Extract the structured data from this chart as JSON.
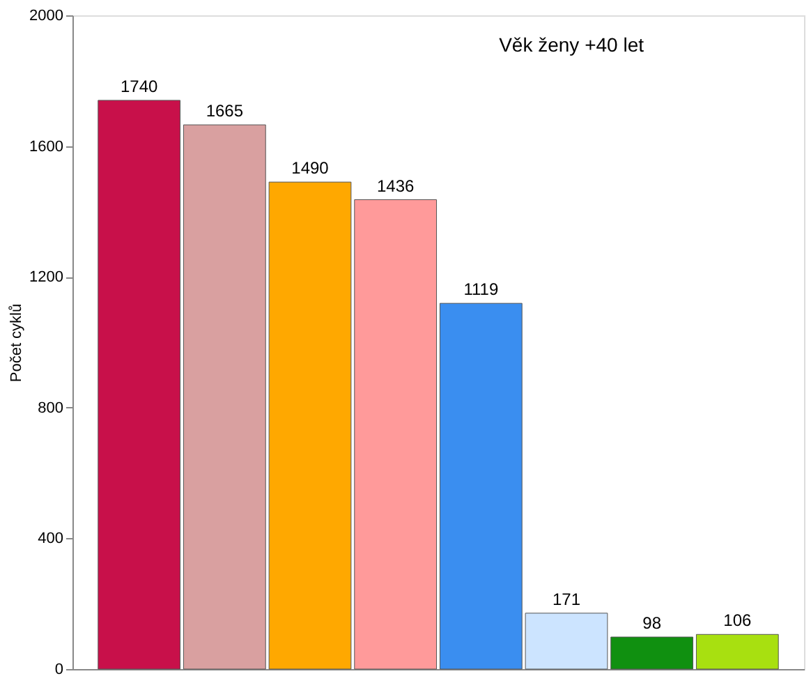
{
  "chart_data": {
    "type": "bar",
    "ylabel": "Počet cyklů",
    "categories": [
      null,
      null,
      null,
      null,
      null,
      null,
      null,
      null
    ],
    "values": [
      1740,
      1665,
      1490,
      1436,
      1119,
      171,
      98,
      106
    ],
    "colors": [
      "#c8104a",
      "#d9a0a0",
      "#ffa800",
      "#ff9a9a",
      "#3a8ef0",
      "#cce4ff",
      "#109010",
      "#a8e010"
    ],
    "ylim": [
      0,
      2000
    ],
    "yticks": [
      0,
      400,
      800,
      1200,
      1600,
      2000
    ],
    "data_labels": true,
    "tick_labels": "y",
    "grid": false,
    "annotations": [
      "Věk ženy +40 let"
    ]
  }
}
